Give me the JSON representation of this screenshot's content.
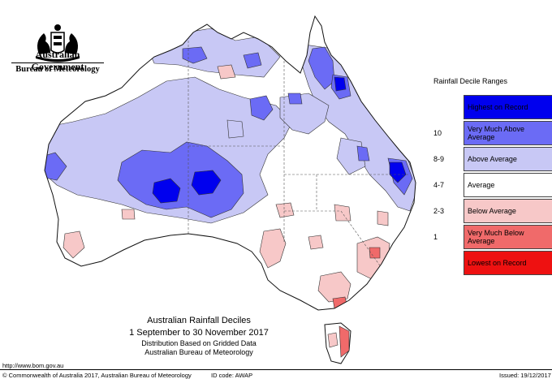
{
  "header": {
    "government": "Australian Government",
    "bureau": "Bureau of Meteorology"
  },
  "legend": {
    "title": "Rainfall Decile Ranges",
    "ranges": [
      {
        "decile": "",
        "label": "Highest on Record",
        "color": "#0000ee"
      },
      {
        "decile": "10",
        "label": "Very Much Above Average",
        "color": "#6b6bf5"
      },
      {
        "decile": "8-9",
        "label": "Above Average",
        "color": "#c8c8f5"
      },
      {
        "decile": "4-7",
        "label": "Average",
        "color": "#ffffff"
      },
      {
        "decile": "2-3",
        "label": "Below Average",
        "color": "#f7c8c8"
      },
      {
        "decile": "1",
        "label": "Very Much Below Average",
        "color": "#f06a6a"
      },
      {
        "decile": "",
        "label": "Lowest on Record",
        "color": "#ee1111"
      }
    ]
  },
  "caption": {
    "title": "Australian Rainfall Deciles",
    "period": "1 September to 30 November 2017",
    "distribution": "Distribution Based on Gridded Data",
    "agency": "Australian Bureau of Meteorology"
  },
  "footer": {
    "url": "http://www.bom.gov.au",
    "copyright": "© Commonwealth of Australia 2017, Australian Bureau of Meteorology",
    "id_code": "ID code: AWAP",
    "issued": "Issued: 19/12/2017"
  }
}
